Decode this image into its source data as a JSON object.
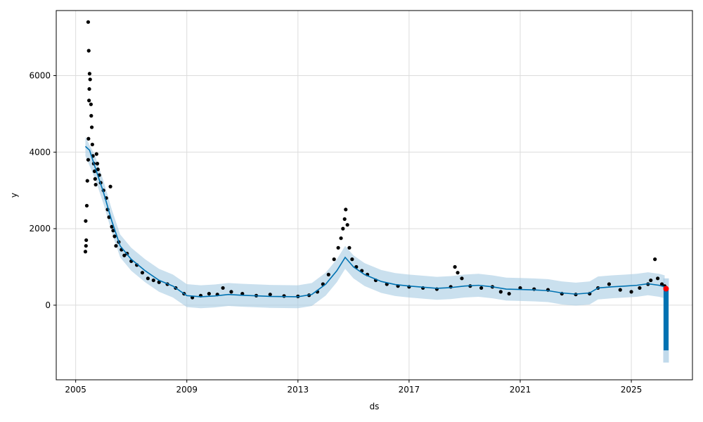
{
  "chart_data": {
    "type": "line",
    "xlabel": "ds",
    "ylabel": "y",
    "x_ticks": [
      "2005",
      "2009",
      "2013",
      "2017",
      "2021",
      "2025"
    ],
    "x_tick_years": [
      2005,
      2009,
      2013,
      2017,
      2021,
      2025
    ],
    "y_ticks": [
      "0",
      "2000",
      "4000",
      "6000"
    ],
    "y_tick_values": [
      0,
      2000,
      4000,
      6000
    ],
    "xlim": [
      2004.3,
      2027.2
    ],
    "ylim": [
      -1950,
      7700
    ],
    "grid": true,
    "colors": {
      "observed": "#000000",
      "forecast": "#0072B2",
      "interval": "#A6CBE3",
      "highlight": "#FF0000"
    },
    "series": [
      {
        "kind": "scatter",
        "points": [
          [
            2005.35,
            1400
          ],
          [
            2005.37,
            1550
          ],
          [
            2005.38,
            1700
          ],
          [
            2005.36,
            2200
          ],
          [
            2005.4,
            2600
          ],
          [
            2005.42,
            3250
          ],
          [
            2005.45,
            3800
          ],
          [
            2005.46,
            4350
          ],
          [
            2005.48,
            5350
          ],
          [
            2005.49,
            5650
          ],
          [
            2005.5,
            6050
          ],
          [
            2005.47,
            6650
          ],
          [
            2005.45,
            7400
          ],
          [
            2005.52,
            5900
          ],
          [
            2005.55,
            5250
          ],
          [
            2005.56,
            4950
          ],
          [
            2005.58,
            4650
          ],
          [
            2005.6,
            4200
          ],
          [
            2005.62,
            3900
          ],
          [
            2005.65,
            3700
          ],
          [
            2005.68,
            3500
          ],
          [
            2005.7,
            3300
          ],
          [
            2005.72,
            3150
          ],
          [
            2005.75,
            3950
          ],
          [
            2005.78,
            3700
          ],
          [
            2005.8,
            3550
          ],
          [
            2005.85,
            3400
          ],
          [
            2005.9,
            3200
          ],
          [
            2006.0,
            3000
          ],
          [
            2006.1,
            2800
          ],
          [
            2006.15,
            2500
          ],
          [
            2006.2,
            2300
          ],
          [
            2006.25,
            3100
          ],
          [
            2006.3,
            2050
          ],
          [
            2006.35,
            1950
          ],
          [
            2006.4,
            1800
          ],
          [
            2006.45,
            1550
          ],
          [
            2006.55,
            1650
          ],
          [
            2006.65,
            1450
          ],
          [
            2006.75,
            1300
          ],
          [
            2006.85,
            1350
          ],
          [
            2007.0,
            1150
          ],
          [
            2007.2,
            1050
          ],
          [
            2007.4,
            850
          ],
          [
            2007.6,
            700
          ],
          [
            2007.8,
            650
          ],
          [
            2008.0,
            600
          ],
          [
            2008.3,
            550
          ],
          [
            2008.6,
            450
          ],
          [
            2008.9,
            300
          ],
          [
            2009.2,
            200
          ],
          [
            2009.5,
            250
          ],
          [
            2009.8,
            300
          ],
          [
            2010.1,
            280
          ],
          [
            2010.3,
            450
          ],
          [
            2010.6,
            350
          ],
          [
            2011.0,
            300
          ],
          [
            2011.5,
            250
          ],
          [
            2012.0,
            280
          ],
          [
            2012.5,
            240
          ],
          [
            2013.0,
            230
          ],
          [
            2013.4,
            260
          ],
          [
            2013.7,
            350
          ],
          [
            2013.9,
            550
          ],
          [
            2014.1,
            800
          ],
          [
            2014.3,
            1200
          ],
          [
            2014.45,
            1500
          ],
          [
            2014.55,
            1750
          ],
          [
            2014.62,
            2000
          ],
          [
            2014.68,
            2250
          ],
          [
            2014.72,
            2500
          ],
          [
            2014.78,
            2100
          ],
          [
            2014.85,
            1500
          ],
          [
            2014.95,
            1200
          ],
          [
            2015.1,
            1000
          ],
          [
            2015.3,
            900
          ],
          [
            2015.5,
            800
          ],
          [
            2015.8,
            650
          ],
          [
            2016.2,
            550
          ],
          [
            2016.6,
            500
          ],
          [
            2017.0,
            480
          ],
          [
            2017.5,
            450
          ],
          [
            2018.0,
            420
          ],
          [
            2018.5,
            480
          ],
          [
            2018.65,
            1000
          ],
          [
            2018.75,
            850
          ],
          [
            2018.9,
            700
          ],
          [
            2019.2,
            500
          ],
          [
            2019.6,
            450
          ],
          [
            2020.0,
            480
          ],
          [
            2020.3,
            350
          ],
          [
            2020.6,
            300
          ],
          [
            2021.0,
            450
          ],
          [
            2021.5,
            420
          ],
          [
            2022.0,
            400
          ],
          [
            2022.5,
            300
          ],
          [
            2023.0,
            280
          ],
          [
            2023.5,
            300
          ],
          [
            2023.8,
            450
          ],
          [
            2024.2,
            550
          ],
          [
            2024.6,
            400
          ],
          [
            2025.0,
            350
          ],
          [
            2025.3,
            450
          ],
          [
            2025.6,
            550
          ],
          [
            2025.7,
            650
          ],
          [
            2025.85,
            1200
          ],
          [
            2025.95,
            700
          ],
          [
            2026.1,
            550
          ],
          [
            2026.2,
            500
          ]
        ]
      },
      {
        "kind": "line",
        "points": [
          [
            2005.35,
            4150
          ],
          [
            2005.5,
            4050
          ],
          [
            2005.7,
            3600
          ],
          [
            2006.0,
            2950
          ],
          [
            2006.3,
            2200
          ],
          [
            2006.6,
            1550
          ],
          [
            2007.0,
            1200
          ],
          [
            2007.5,
            900
          ],
          [
            2008.0,
            650
          ],
          [
            2008.5,
            500
          ],
          [
            2009.0,
            250
          ],
          [
            2009.5,
            220
          ],
          [
            2010.0,
            240
          ],
          [
            2010.5,
            280
          ],
          [
            2011.0,
            260
          ],
          [
            2012.0,
            230
          ],
          [
            2013.0,
            220
          ],
          [
            2013.5,
            280
          ],
          [
            2014.0,
            550
          ],
          [
            2014.4,
            900
          ],
          [
            2014.7,
            1250
          ],
          [
            2015.0,
            1000
          ],
          [
            2015.4,
            800
          ],
          [
            2016.0,
            620
          ],
          [
            2016.5,
            540
          ],
          [
            2017.0,
            500
          ],
          [
            2017.5,
            470
          ],
          [
            2018.0,
            440
          ],
          [
            2018.5,
            460
          ],
          [
            2019.0,
            500
          ],
          [
            2019.5,
            520
          ],
          [
            2020.0,
            480
          ],
          [
            2020.5,
            420
          ],
          [
            2021.0,
            410
          ],
          [
            2021.5,
            400
          ],
          [
            2022.0,
            380
          ],
          [
            2022.5,
            320
          ],
          [
            2023.0,
            290
          ],
          [
            2023.5,
            320
          ],
          [
            2023.8,
            450
          ],
          [
            2024.3,
            480
          ],
          [
            2024.8,
            500
          ],
          [
            2025.2,
            520
          ],
          [
            2025.6,
            560
          ],
          [
            2026.0,
            520
          ],
          [
            2026.2,
            480
          ]
        ]
      },
      {
        "kind": "band",
        "points": [
          [
            2005.35,
            3900,
            4400
          ],
          [
            2005.7,
            3300,
            3900
          ],
          [
            2006.0,
            2650,
            3250
          ],
          [
            2006.3,
            1900,
            2500
          ],
          [
            2006.6,
            1250,
            1850
          ],
          [
            2007.0,
            900,
            1500
          ],
          [
            2007.5,
            600,
            1200
          ],
          [
            2008.0,
            350,
            950
          ],
          [
            2008.5,
            200,
            800
          ],
          [
            2009.0,
            -50,
            550
          ],
          [
            2009.5,
            -80,
            520
          ],
          [
            2010.0,
            -60,
            540
          ],
          [
            2010.5,
            -20,
            580
          ],
          [
            2011.0,
            -40,
            560
          ],
          [
            2012.0,
            -70,
            530
          ],
          [
            2013.0,
            -80,
            520
          ],
          [
            2013.5,
            -20,
            580
          ],
          [
            2014.0,
            250,
            850
          ],
          [
            2014.4,
            600,
            1200
          ],
          [
            2014.7,
            950,
            1550
          ],
          [
            2015.0,
            700,
            1300
          ],
          [
            2015.4,
            500,
            1100
          ],
          [
            2016.0,
            320,
            920
          ],
          [
            2016.5,
            240,
            840
          ],
          [
            2017.0,
            200,
            800
          ],
          [
            2017.5,
            170,
            770
          ],
          [
            2018.0,
            140,
            740
          ],
          [
            2018.5,
            160,
            760
          ],
          [
            2019.0,
            200,
            800
          ],
          [
            2019.5,
            220,
            820
          ],
          [
            2020.0,
            180,
            780
          ],
          [
            2020.5,
            120,
            720
          ],
          [
            2021.0,
            110,
            710
          ],
          [
            2021.5,
            100,
            700
          ],
          [
            2022.0,
            80,
            680
          ],
          [
            2022.5,
            20,
            620
          ],
          [
            2023.0,
            -10,
            590
          ],
          [
            2023.5,
            20,
            620
          ],
          [
            2023.8,
            150,
            750
          ],
          [
            2024.3,
            180,
            780
          ],
          [
            2024.8,
            200,
            800
          ],
          [
            2025.2,
            220,
            820
          ],
          [
            2025.6,
            260,
            860
          ],
          [
            2026.0,
            220,
            820
          ],
          [
            2026.2,
            180,
            780
          ]
        ]
      },
      {
        "kind": "forecast-drop",
        "x": 2026.25,
        "y_top": 420,
        "y_bottom": -1180,
        "interval_low": -1500,
        "interval_high": 700
      },
      {
        "kind": "highlight",
        "points": [
          [
            2026.25,
            430
          ]
        ]
      }
    ]
  }
}
